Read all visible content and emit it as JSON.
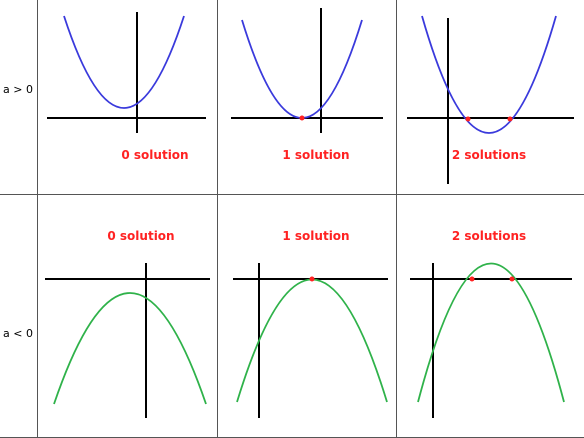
{
  "rows": [
    {
      "label": "a > 0",
      "cells": [
        {
          "caption": "0 solution"
        },
        {
          "caption": "1 solution"
        },
        {
          "caption": "2 solutions"
        }
      ]
    },
    {
      "label": "a < 0",
      "cells": [
        {
          "caption": "0 solution"
        },
        {
          "caption": "1 solution"
        },
        {
          "caption": "2 solutions"
        }
      ]
    }
  ],
  "colors": {
    "upward_parabola": "#3a3adc",
    "downward_parabola": "#2fb24a",
    "axes": "#000000",
    "caption": "#ff2222",
    "root_marker": "#ff2222",
    "grid_lines": "#555555"
  }
}
